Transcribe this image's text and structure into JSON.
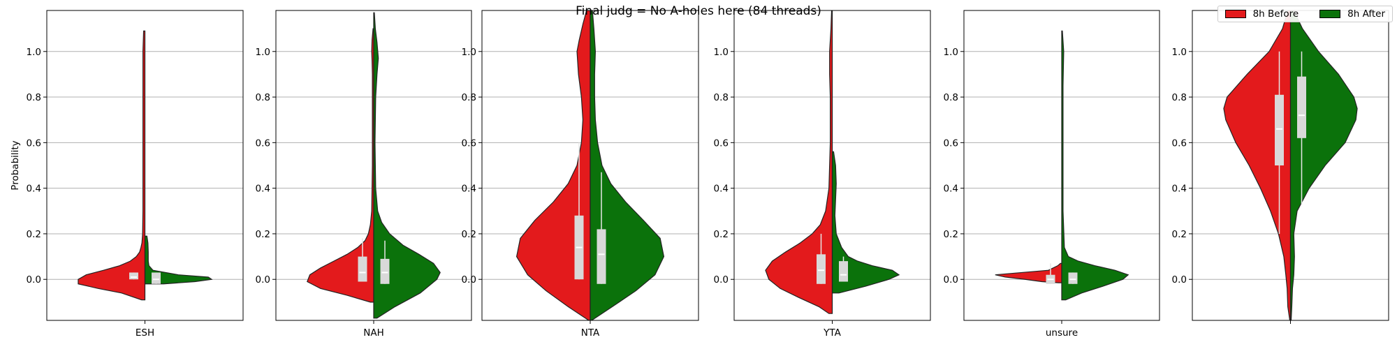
{
  "figure": {
    "title": "Final judg = No A-holes here (84 threads)",
    "legend": [
      {
        "label": "8h Before",
        "color": "#e31a1c"
      },
      {
        "label": "8h After",
        "color": "#0b720b"
      }
    ]
  },
  "chart_data": {
    "type": "violin",
    "split_violins": true,
    "ylabel": "Probability",
    "ylim": [
      -0.18,
      1.18
    ],
    "yticks": [
      "0.0",
      "0.2",
      "0.4",
      "0.6",
      "0.8",
      "1.0"
    ],
    "grid": "horizontal",
    "legend_placement": "top-right",
    "series_names": [
      "8h Before",
      "8h After"
    ],
    "panels": [
      {
        "category": "ESH",
        "before": {
          "density": [
            [
              -0.09,
              0.05
            ],
            [
              -0.06,
              0.35
            ],
            [
              -0.04,
              0.7
            ],
            [
              -0.02,
              1.0
            ],
            [
              0.0,
              1.0
            ],
            [
              0.02,
              0.88
            ],
            [
              0.04,
              0.62
            ],
            [
              0.06,
              0.38
            ],
            [
              0.08,
              0.22
            ],
            [
              0.1,
              0.13
            ],
            [
              0.12,
              0.08
            ],
            [
              0.14,
              0.06
            ],
            [
              0.16,
              0.045
            ],
            [
              0.2,
              0.035
            ],
            [
              0.3,
              0.03
            ],
            [
              0.5,
              0.03
            ],
            [
              0.7,
              0.03
            ],
            [
              0.9,
              0.03
            ],
            [
              1.0,
              0.03
            ],
            [
              1.09,
              0.02
            ]
          ],
          "box": {
            "q1": 0.0,
            "q3": 0.03,
            "median": 0.01,
            "wlow": 0.0,
            "whigh": 0.03
          }
        },
        "after": {
          "density": [
            [
              -0.02,
              0.28
            ],
            [
              -0.01,
              0.75
            ],
            [
              0.0,
              1.0
            ],
            [
              0.01,
              0.95
            ],
            [
              0.02,
              0.5
            ],
            [
              0.04,
              0.12
            ],
            [
              0.06,
              0.06
            ],
            [
              0.08,
              0.05
            ],
            [
              0.12,
              0.05
            ],
            [
              0.16,
              0.045
            ],
            [
              0.19,
              0.03
            ]
          ],
          "box": {
            "q1": -0.02,
            "q3": 0.03,
            "median": 0.0,
            "wlow": -0.02,
            "whigh": 0.03
          }
        }
      },
      {
        "category": "NAH",
        "before": {
          "density": [
            [
              -0.1,
              0.05
            ],
            [
              -0.07,
              0.4
            ],
            [
              -0.04,
              0.8
            ],
            [
              -0.01,
              1.0
            ],
            [
              0.02,
              0.96
            ],
            [
              0.05,
              0.8
            ],
            [
              0.08,
              0.6
            ],
            [
              0.11,
              0.4
            ],
            [
              0.14,
              0.24
            ],
            [
              0.17,
              0.13
            ],
            [
              0.2,
              0.08
            ],
            [
              0.24,
              0.05
            ],
            [
              0.3,
              0.03
            ],
            [
              0.5,
              0.02
            ],
            [
              0.7,
              0.02
            ],
            [
              0.9,
              0.02
            ],
            [
              0.96,
              0.025
            ],
            [
              1.0,
              0.03
            ],
            [
              1.05,
              0.025
            ],
            [
              1.1,
              0.01
            ]
          ],
          "box": {
            "q1": -0.01,
            "q3": 0.1,
            "median": 0.03,
            "wlow": -0.01,
            "whigh": 0.18
          }
        },
        "after": {
          "density": [
            [
              -0.17,
              0.05
            ],
            [
              -0.12,
              0.32
            ],
            [
              -0.06,
              0.7
            ],
            [
              0.0,
              0.95
            ],
            [
              0.03,
              1.0
            ],
            [
              0.07,
              0.9
            ],
            [
              0.11,
              0.68
            ],
            [
              0.15,
              0.44
            ],
            [
              0.2,
              0.24
            ],
            [
              0.25,
              0.12
            ],
            [
              0.3,
              0.06
            ],
            [
              0.4,
              0.03
            ],
            [
              0.6,
              0.02
            ],
            [
              0.8,
              0.03
            ],
            [
              0.9,
              0.05
            ],
            [
              0.97,
              0.07
            ],
            [
              1.04,
              0.05
            ],
            [
              1.1,
              0.025
            ],
            [
              1.17,
              0.01
            ]
          ],
          "box": {
            "q1": -0.02,
            "q3": 0.09,
            "median": 0.03,
            "wlow": -0.02,
            "whigh": 0.17
          }
        }
      },
      {
        "category": "NTA",
        "before": {
          "density": [
            [
              -0.18,
              0.02
            ],
            [
              -0.12,
              0.3
            ],
            [
              -0.05,
              0.6
            ],
            [
              0.02,
              0.85
            ],
            [
              0.1,
              1.0
            ],
            [
              0.18,
              0.95
            ],
            [
              0.26,
              0.75
            ],
            [
              0.34,
              0.5
            ],
            [
              0.42,
              0.3
            ],
            [
              0.5,
              0.18
            ],
            [
              0.6,
              0.12
            ],
            [
              0.7,
              0.1
            ],
            [
              0.8,
              0.12
            ],
            [
              0.9,
              0.16
            ],
            [
              1.0,
              0.18
            ],
            [
              1.05,
              0.15
            ],
            [
              1.12,
              0.1
            ],
            [
              1.18,
              0.05
            ]
          ],
          "box": {
            "q1": 0.0,
            "q3": 0.28,
            "median": 0.14,
            "wlow": 0.0,
            "whigh": 0.6
          }
        },
        "after": {
          "density": [
            [
              -0.18,
              0.02
            ],
            [
              -0.12,
              0.3
            ],
            [
              -0.05,
              0.62
            ],
            [
              0.02,
              0.88
            ],
            [
              0.1,
              1.0
            ],
            [
              0.18,
              0.95
            ],
            [
              0.26,
              0.72
            ],
            [
              0.34,
              0.48
            ],
            [
              0.42,
              0.28
            ],
            [
              0.5,
              0.16
            ],
            [
              0.6,
              0.1
            ],
            [
              0.7,
              0.07
            ],
            [
              0.8,
              0.06
            ],
            [
              0.9,
              0.06
            ],
            [
              1.0,
              0.07
            ],
            [
              1.1,
              0.05
            ],
            [
              1.18,
              0.03
            ]
          ],
          "box": {
            "q1": -0.02,
            "q3": 0.22,
            "median": 0.11,
            "wlow": -0.02,
            "whigh": 0.47
          }
        }
      },
      {
        "category": "YTA",
        "before": {
          "density": [
            [
              -0.15,
              0.05
            ],
            [
              -0.12,
              0.2
            ],
            [
              -0.08,
              0.5
            ],
            [
              -0.04,
              0.78
            ],
            [
              0.0,
              0.95
            ],
            [
              0.04,
              1.0
            ],
            [
              0.08,
              0.9
            ],
            [
              0.12,
              0.7
            ],
            [
              0.16,
              0.48
            ],
            [
              0.2,
              0.3
            ],
            [
              0.24,
              0.18
            ],
            [
              0.3,
              0.1
            ],
            [
              0.4,
              0.05
            ],
            [
              0.6,
              0.03
            ],
            [
              0.8,
              0.03
            ],
            [
              0.9,
              0.04
            ],
            [
              1.0,
              0.04
            ],
            [
              1.1,
              0.02
            ],
            [
              1.18,
              0.01
            ]
          ],
          "box": {
            "q1": -0.02,
            "q3": 0.11,
            "median": 0.04,
            "wlow": -0.02,
            "whigh": 0.2
          }
        },
        "after": {
          "density": [
            [
              -0.06,
              0.1
            ],
            [
              -0.03,
              0.5
            ],
            [
              0.0,
              0.85
            ],
            [
              0.02,
              1.0
            ],
            [
              0.04,
              0.9
            ],
            [
              0.06,
              0.6
            ],
            [
              0.08,
              0.38
            ],
            [
              0.1,
              0.24
            ],
            [
              0.14,
              0.14
            ],
            [
              0.2,
              0.06
            ],
            [
              0.28,
              0.04
            ],
            [
              0.35,
              0.05
            ],
            [
              0.42,
              0.06
            ],
            [
              0.5,
              0.05
            ],
            [
              0.56,
              0.02
            ]
          ],
          "box": {
            "q1": -0.01,
            "q3": 0.08,
            "median": 0.02,
            "wlow": -0.01,
            "whigh": 0.1
          }
        }
      },
      {
        "category": "unsure",
        "before": {
          "density": [
            [
              -0.015,
              0.05
            ],
            [
              -0.01,
              0.3
            ],
            [
              0.0,
              0.55
            ],
            [
              0.01,
              0.85
            ],
            [
              0.02,
              1.0
            ],
            [
              0.03,
              0.6
            ],
            [
              0.04,
              0.2
            ],
            [
              0.06,
              0.06
            ],
            [
              0.07,
              0.02
            ]
          ],
          "box": {
            "q1": -0.02,
            "q3": 0.02,
            "median": 0.0,
            "wlow": -0.02,
            "whigh": 0.07
          }
        },
        "after": {
          "density": [
            [
              -0.09,
              0.06
            ],
            [
              -0.06,
              0.3
            ],
            [
              -0.03,
              0.62
            ],
            [
              0.0,
              0.92
            ],
            [
              0.02,
              1.0
            ],
            [
              0.04,
              0.8
            ],
            [
              0.06,
              0.5
            ],
            [
              0.08,
              0.25
            ],
            [
              0.1,
              0.1
            ],
            [
              0.14,
              0.04
            ],
            [
              0.3,
              0.02
            ],
            [
              0.6,
              0.02
            ],
            [
              0.85,
              0.02
            ],
            [
              1.0,
              0.03
            ],
            [
              1.09,
              0.01
            ]
          ],
          "box": {
            "q1": -0.02,
            "q3": 0.03,
            "median": 0.0,
            "wlow": -0.02,
            "whigh": 0.03
          }
        }
      },
      {
        "category": "",
        "before": {
          "density": [
            [
              -0.18,
              0.01
            ],
            [
              -0.12,
              0.04
            ],
            [
              -0.04,
              0.05
            ],
            [
              0.02,
              0.07
            ],
            [
              0.1,
              0.1
            ],
            [
              0.2,
              0.18
            ],
            [
              0.3,
              0.3
            ],
            [
              0.4,
              0.45
            ],
            [
              0.5,
              0.62
            ],
            [
              0.6,
              0.82
            ],
            [
              0.7,
              0.97
            ],
            [
              0.75,
              1.0
            ],
            [
              0.8,
              0.95
            ],
            [
              0.9,
              0.65
            ],
            [
              1.0,
              0.32
            ],
            [
              1.1,
              0.12
            ],
            [
              1.18,
              0.04
            ]
          ],
          "box": {
            "q1": 0.5,
            "q3": 0.81,
            "median": 0.66,
            "wlow": 0.2,
            "whigh": 1.0
          }
        },
        "after": {
          "density": [
            [
              -0.18,
              0.01
            ],
            [
              -0.12,
              0.02
            ],
            [
              -0.04,
              0.03
            ],
            [
              0.02,
              0.05
            ],
            [
              0.1,
              0.06
            ],
            [
              0.2,
              0.05
            ],
            [
              0.3,
              0.1
            ],
            [
              0.4,
              0.28
            ],
            [
              0.5,
              0.52
            ],
            [
              0.6,
              0.82
            ],
            [
              0.7,
              0.98
            ],
            [
              0.75,
              1.0
            ],
            [
              0.8,
              0.95
            ],
            [
              0.9,
              0.72
            ],
            [
              1.0,
              0.42
            ],
            [
              1.1,
              0.18
            ],
            [
              1.18,
              0.05
            ]
          ],
          "box": {
            "q1": 0.62,
            "q3": 0.89,
            "median": 0.72,
            "wlow": 0.33,
            "whigh": 1.0
          }
        }
      }
    ]
  }
}
